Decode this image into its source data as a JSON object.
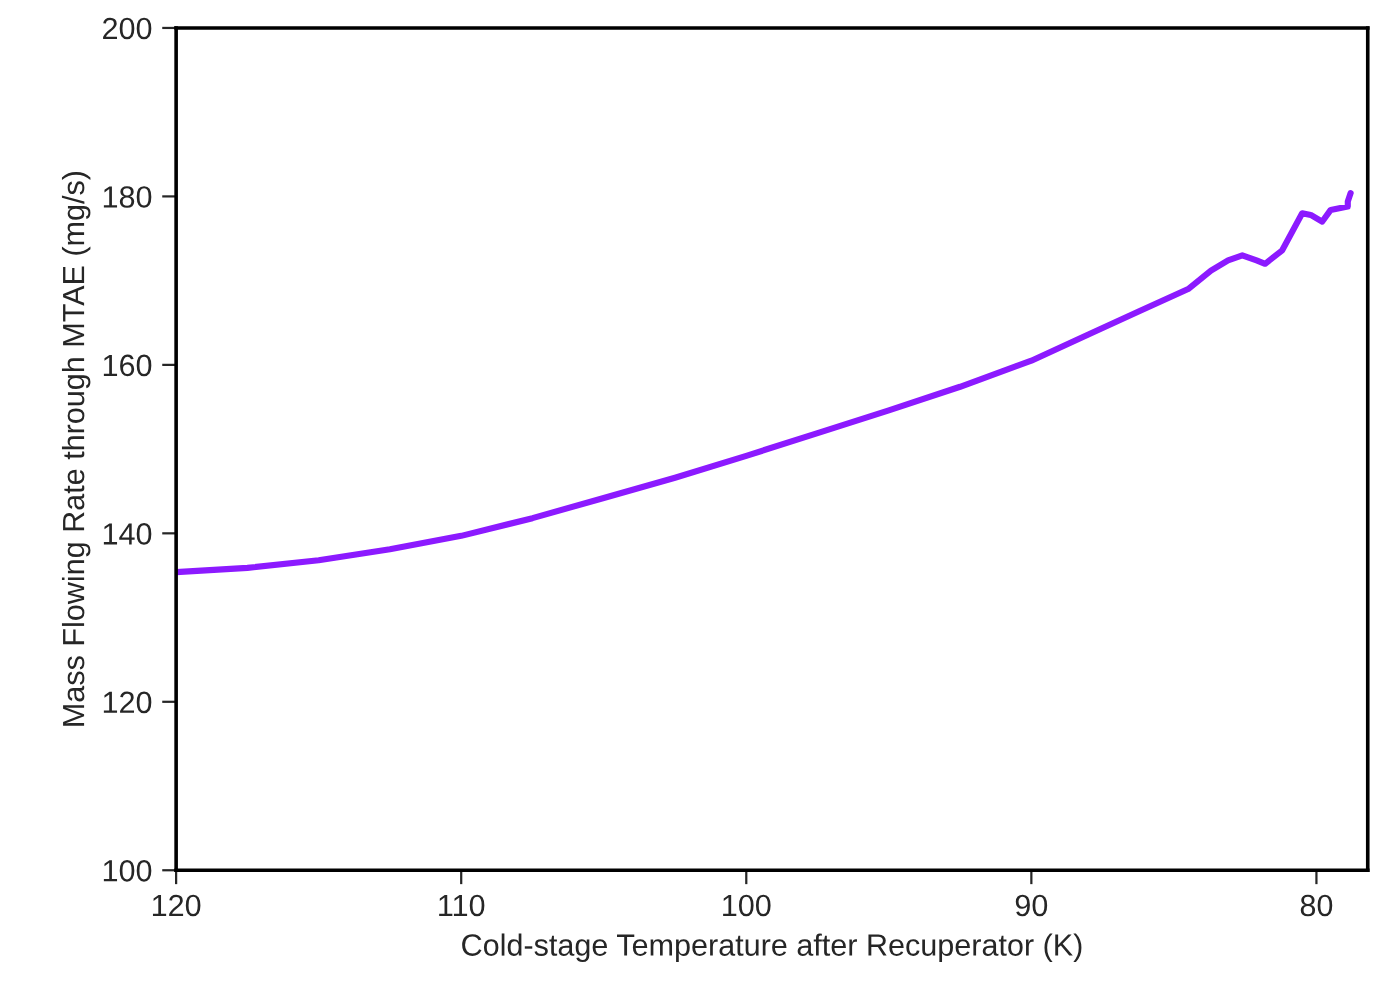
{
  "chart_data": {
    "type": "line",
    "xlabel": "Cold-stage Temperature after Recuperator (K)",
    "ylabel": "Mass Flowing Rate through MTAE (mg/s)",
    "x": [
      120,
      117.5,
      115,
      112.5,
      110,
      107.5,
      105,
      102.5,
      100,
      97.5,
      95,
      92.5,
      90,
      88,
      86.2,
      84.5,
      83.7,
      83.1,
      82.6,
      82.1,
      81.8,
      81.2,
      80.5,
      80.2,
      79.8,
      79.5,
      78.9,
      78.9,
      78.8
    ],
    "series": [
      {
        "color": "#8c1aff",
        "values": [
          135.4,
          135.9,
          136.8,
          138.1,
          139.7,
          141.8,
          144.2,
          146.6,
          149.2,
          151.9,
          154.6,
          157.4,
          160.5,
          163.6,
          166.4,
          169.0,
          171.2,
          172.4,
          173.0,
          172.4,
          172.0,
          173.6,
          178.0,
          177.8,
          177.0,
          178.4,
          178.8,
          179.4,
          180.4
        ]
      }
    ],
    "xlim": [
      120,
      78.2
    ],
    "xticks": [
      120,
      110,
      100,
      90,
      80
    ],
    "ylim": [
      100,
      200
    ],
    "yticks": [
      100,
      120,
      140,
      160,
      180,
      200
    ],
    "grid": false,
    "marker": "none",
    "line_style": "solid"
  }
}
